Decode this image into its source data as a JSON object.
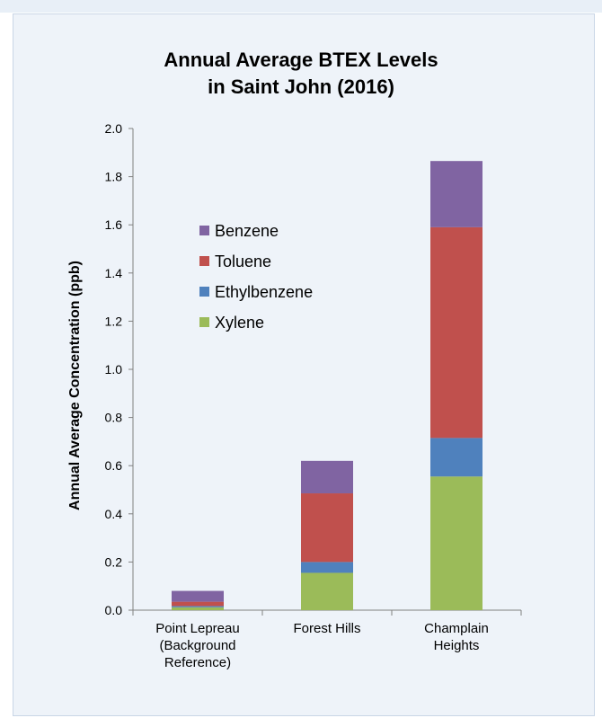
{
  "chart_data": {
    "type": "bar",
    "stacked": true,
    "title": [
      "Annual Average BTEX Levels",
      "in Saint John (2016)"
    ],
    "ylabel": "Annual Average Concentration (ppb)",
    "xlabel": "",
    "ylim": [
      0,
      2.0
    ],
    "yticks": [
      "0.0",
      "0.2",
      "0.4",
      "0.6",
      "0.8",
      "1.0",
      "1.2",
      "1.4",
      "1.6",
      "1.8",
      "2.0"
    ],
    "categories": [
      [
        "Point Lepreau",
        "(Background",
        "Reference)"
      ],
      [
        "Forest Hills"
      ],
      [
        "Champlain",
        "Heights"
      ]
    ],
    "series": [
      {
        "name": "Xylene",
        "color": "#9bbb59",
        "values": [
          0.012,
          0.155,
          0.555
        ]
      },
      {
        "name": "Ethylbenzene",
        "color": "#4f81bd",
        "values": [
          0.005,
          0.045,
          0.16
        ]
      },
      {
        "name": "Toluene",
        "color": "#c0504d",
        "values": [
          0.018,
          0.285,
          0.875
        ]
      },
      {
        "name": "Benzene",
        "color": "#8064a2",
        "values": [
          0.045,
          0.135,
          0.275
        ]
      }
    ],
    "legend_order": [
      "Benzene",
      "Toluene",
      "Ethylbenzene",
      "Xylene"
    ],
    "legend_position": "upper-left inside"
  }
}
